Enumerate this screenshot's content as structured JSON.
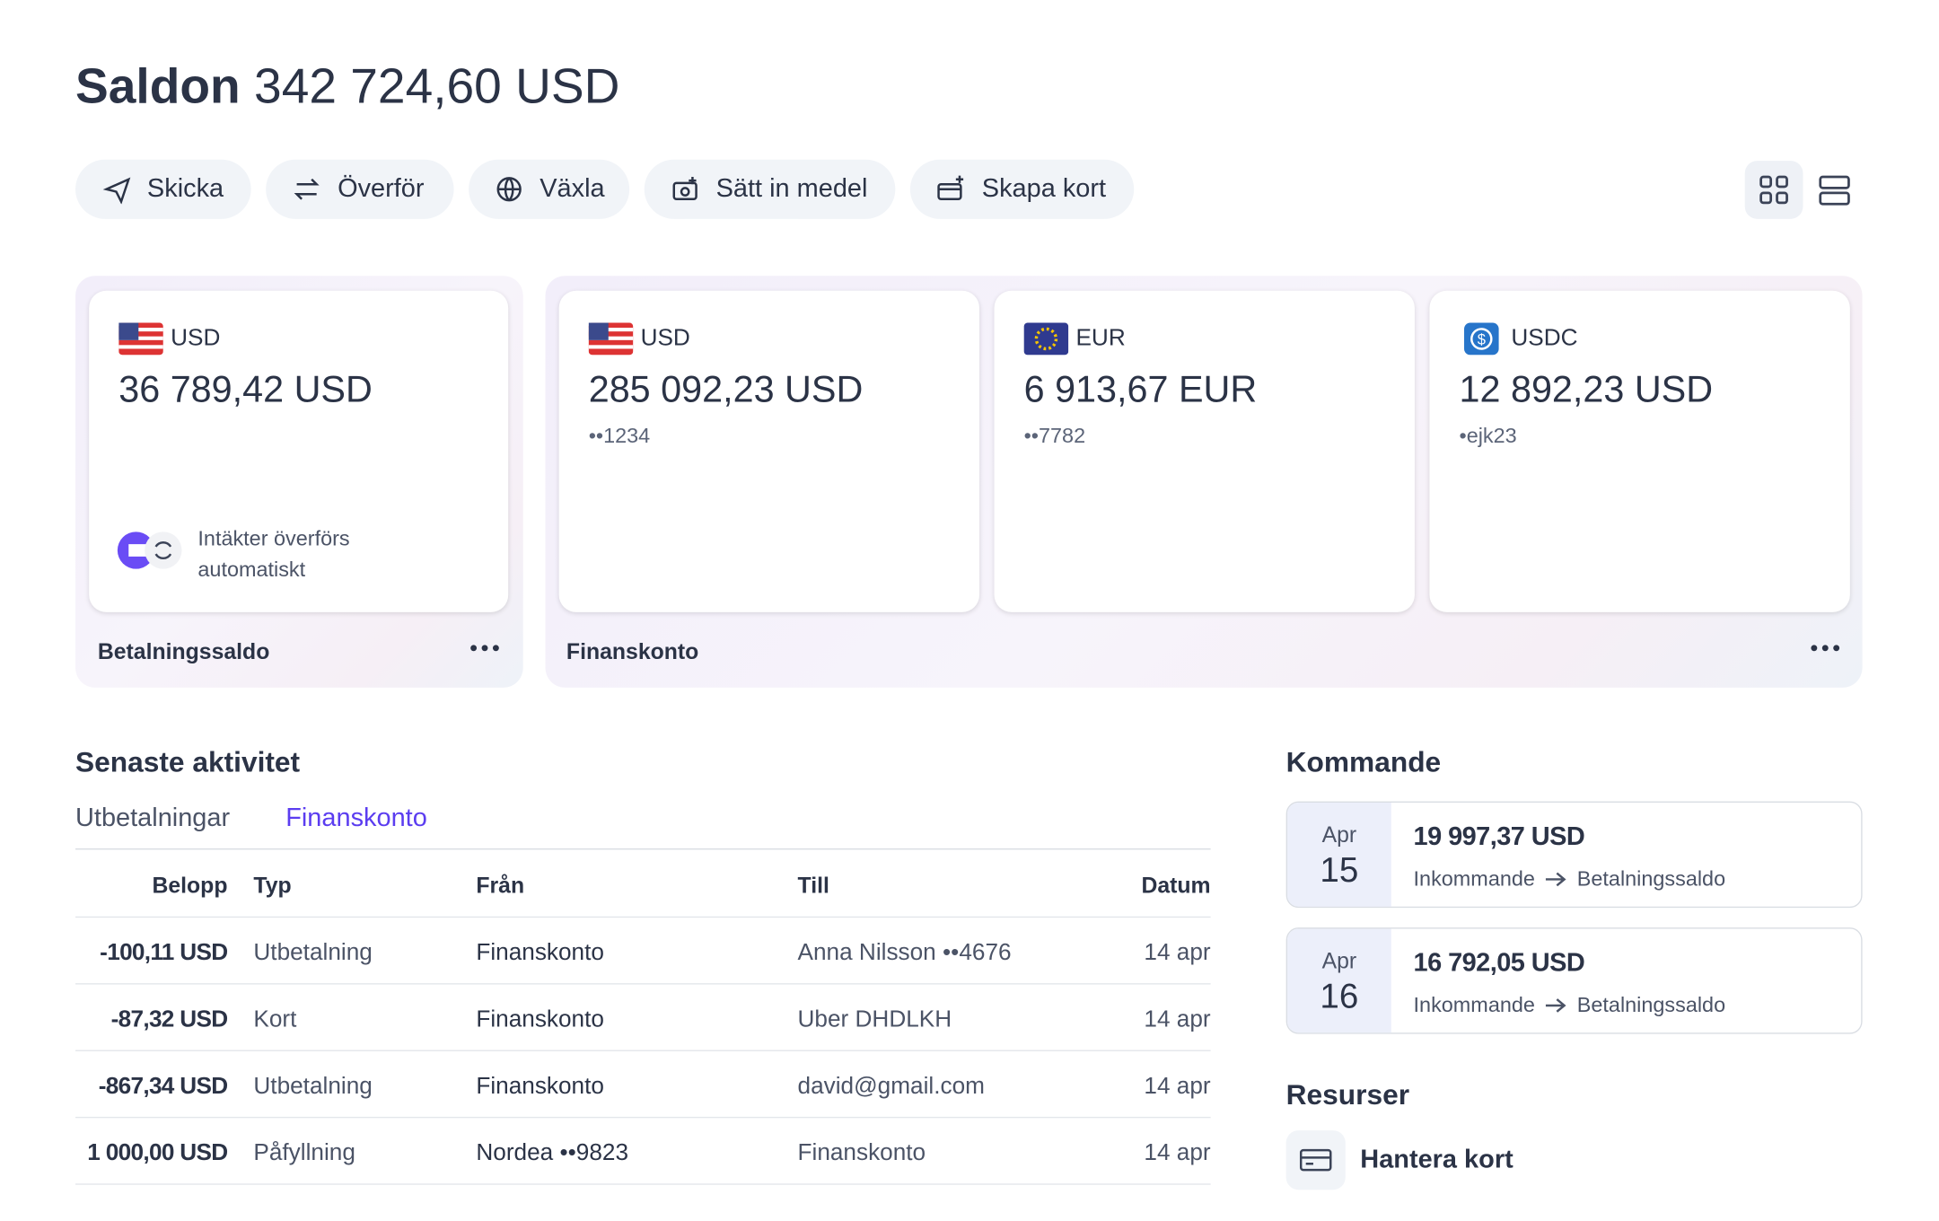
{
  "header": {
    "title": "Saldon",
    "total": "342 724,60 USD"
  },
  "actions": [
    "Skicka",
    "Överför",
    "Växla",
    "Sätt in medel",
    "Skapa kort"
  ],
  "payment_group": {
    "label": "Betalningssaldo",
    "card": {
      "currency": "USD",
      "balance": "36 789,42 USD",
      "note": "Intäkter överförs automatiskt"
    }
  },
  "finance_group": {
    "label": "Finanskonto",
    "cards": [
      {
        "currency": "USD",
        "balance": "285 092,23 USD",
        "account": "••1234"
      },
      {
        "currency": "EUR",
        "balance": "6 913,67 EUR",
        "account": "••7782"
      },
      {
        "currency": "USDC",
        "balance": "12 892,23 USD",
        "account": "•ejk23"
      }
    ]
  },
  "activity": {
    "title": "Senaste aktivitet",
    "tabs": [
      "Utbetalningar",
      "Finanskonto"
    ],
    "columns": [
      "Belopp",
      "Typ",
      "Från",
      "Till",
      "Datum"
    ],
    "rows": [
      [
        "-100,11 USD",
        "Utbetalning",
        "Finanskonto",
        "Anna Nilsson ••4676",
        "14 apr"
      ],
      [
        "-87,32 USD",
        "Kort",
        "Finanskonto",
        "Uber DHDLKH",
        "14 apr"
      ],
      [
        "-867,34 USD",
        "Utbetalning",
        "Finanskonto",
        "david@gmail.com",
        "14 apr"
      ],
      [
        "1 000,00 USD",
        "Påfyllning",
        "Nordea ••9823",
        "Finanskonto",
        "14 apr"
      ]
    ]
  },
  "upcoming": {
    "title": "Kommande",
    "items": [
      {
        "month": "Apr",
        "day": "15",
        "amount": "19 997,37 USD",
        "from": "Inkommande",
        "to": "Betalningssaldo"
      },
      {
        "month": "Apr",
        "day": "16",
        "amount": "16 792,05 USD",
        "from": "Inkommande",
        "to": "Betalningssaldo"
      }
    ]
  },
  "resources": {
    "title": "Resurser",
    "items": [
      "Hantera kort"
    ]
  }
}
